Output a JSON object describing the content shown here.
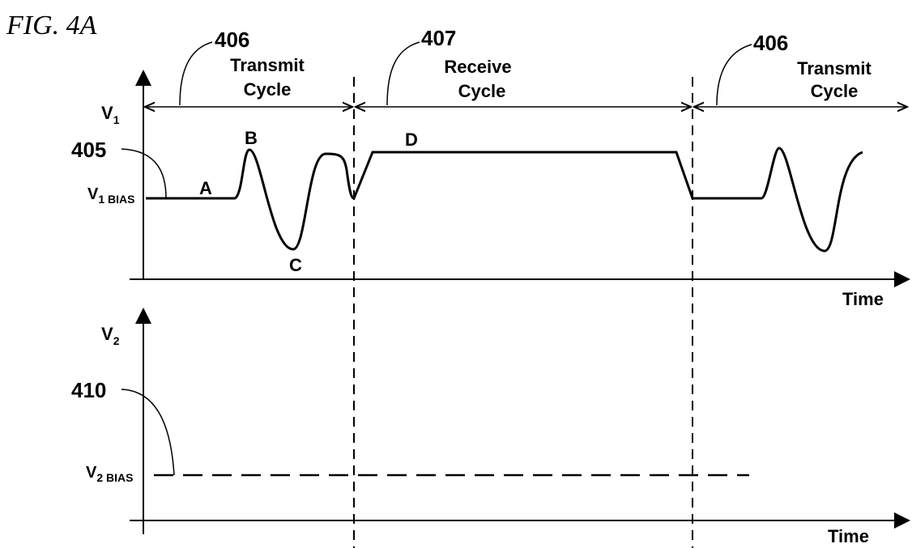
{
  "figure": "FIG. 4A",
  "plot1": {
    "y_label": {
      "main": "V",
      "sub": "1"
    },
    "x_label": "Time",
    "bias_label": {
      "main": "V",
      "sub": "1 BIAS"
    },
    "bias_ref": "405",
    "points": [
      "A",
      "B",
      "C",
      "D"
    ]
  },
  "plot2": {
    "y_label": {
      "main": "V",
      "sub": "2"
    },
    "x_label": "Time",
    "bias_label": {
      "main": "V",
      "sub": "2 BIAS"
    },
    "bias_ref": "410"
  },
  "cycles": [
    {
      "ref": "406",
      "label": [
        "Transmit",
        "Cycle"
      ]
    },
    {
      "ref": "407",
      "label": [
        "Receive",
        "Cycle"
      ]
    },
    {
      "ref": "406",
      "label": [
        "Transmit",
        "Cycle"
      ]
    }
  ]
}
